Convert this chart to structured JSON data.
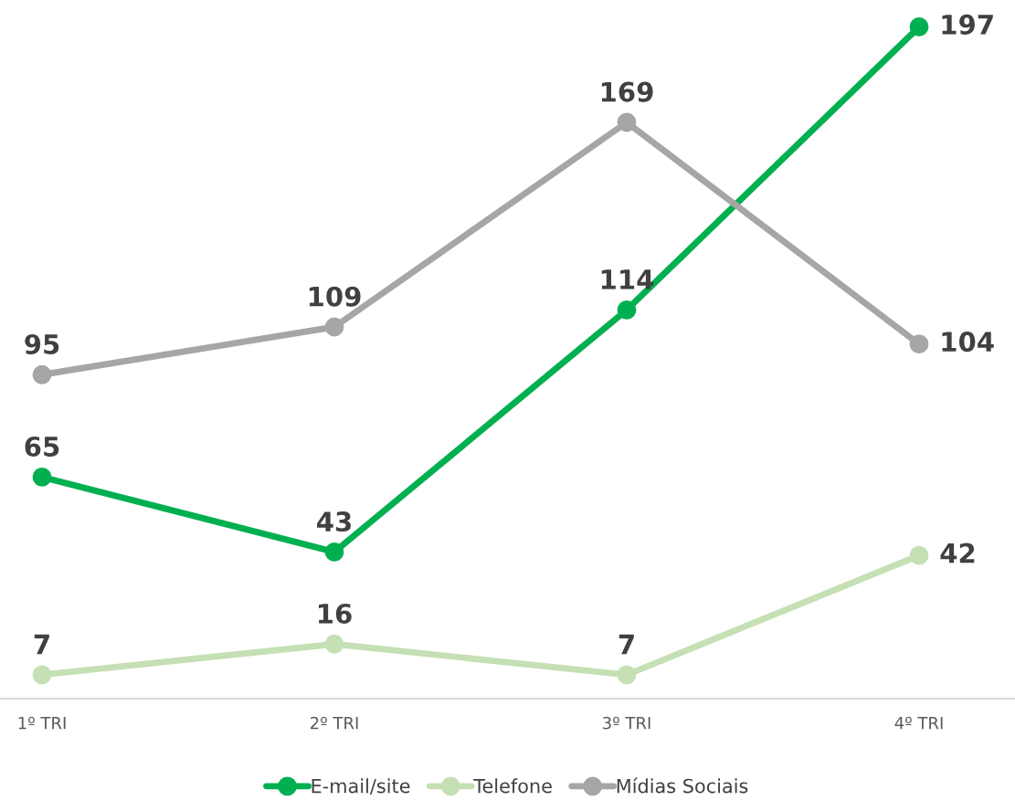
{
  "chart_data": {
    "type": "line",
    "categories": [
      "1º TRI",
      "2º TRI",
      "3º TRI",
      "4º TRI"
    ],
    "series": [
      {
        "name": "E-mail/site",
        "color": "#00b050",
        "values": [
          65,
          43,
          114,
          197
        ]
      },
      {
        "name": "Telefone",
        "color": "#c5e0b4",
        "values": [
          7,
          16,
          7,
          42
        ]
      },
      {
        "name": "Mídias Sociais",
        "color": "#a6a6a6",
        "values": [
          95,
          109,
          169,
          104
        ]
      }
    ],
    "data_labels": true,
    "legend": "bottom",
    "marker": "circle",
    "line_style": "solid",
    "grid": false,
    "tick_labels": "x"
  }
}
